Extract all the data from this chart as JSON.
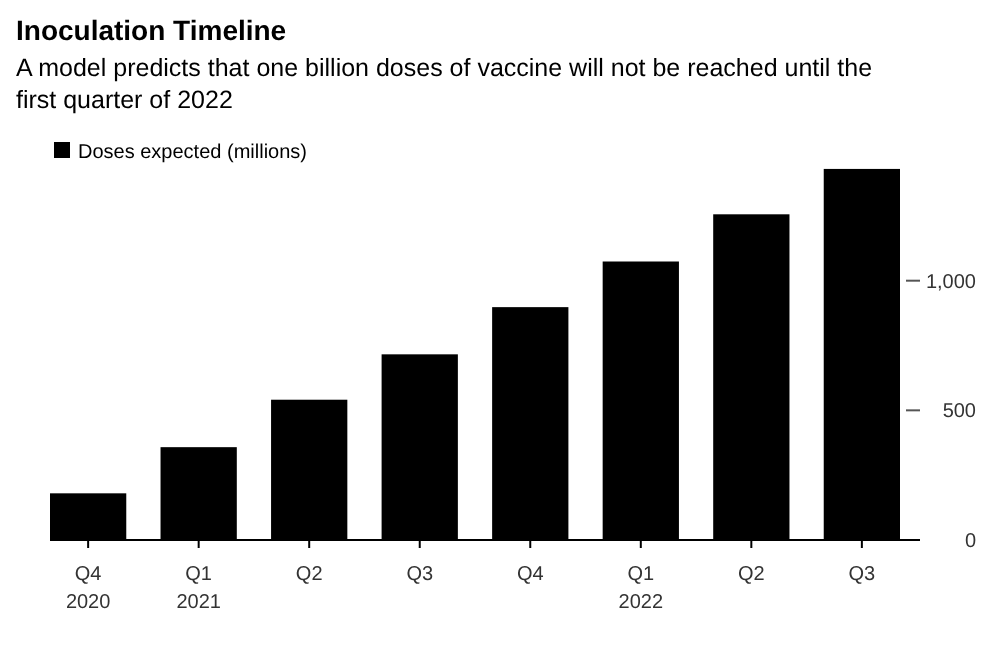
{
  "chart_data": {
    "type": "bar",
    "title": "Inoculation Timeline",
    "subtitle": "A model predicts that one billion doses of vaccine will not be reached until the first quarter of 2022",
    "categories": [
      "Q4\n2020",
      "Q1\n2021",
      "Q2",
      "Q3",
      "Q4",
      "Q1\n2022",
      "Q2",
      "Q3"
    ],
    "series": [
      {
        "name": "Doses expected (millions)",
        "color": "#000000",
        "values": [
          180,
          358,
          541,
          716,
          898,
          1074,
          1256,
          1431
        ]
      }
    ],
    "ylim": [
      0,
      1450
    ],
    "yticks": [
      0,
      500,
      {
        "value": 1000,
        "label": "1,000"
      }
    ],
    "legend": "top left"
  }
}
